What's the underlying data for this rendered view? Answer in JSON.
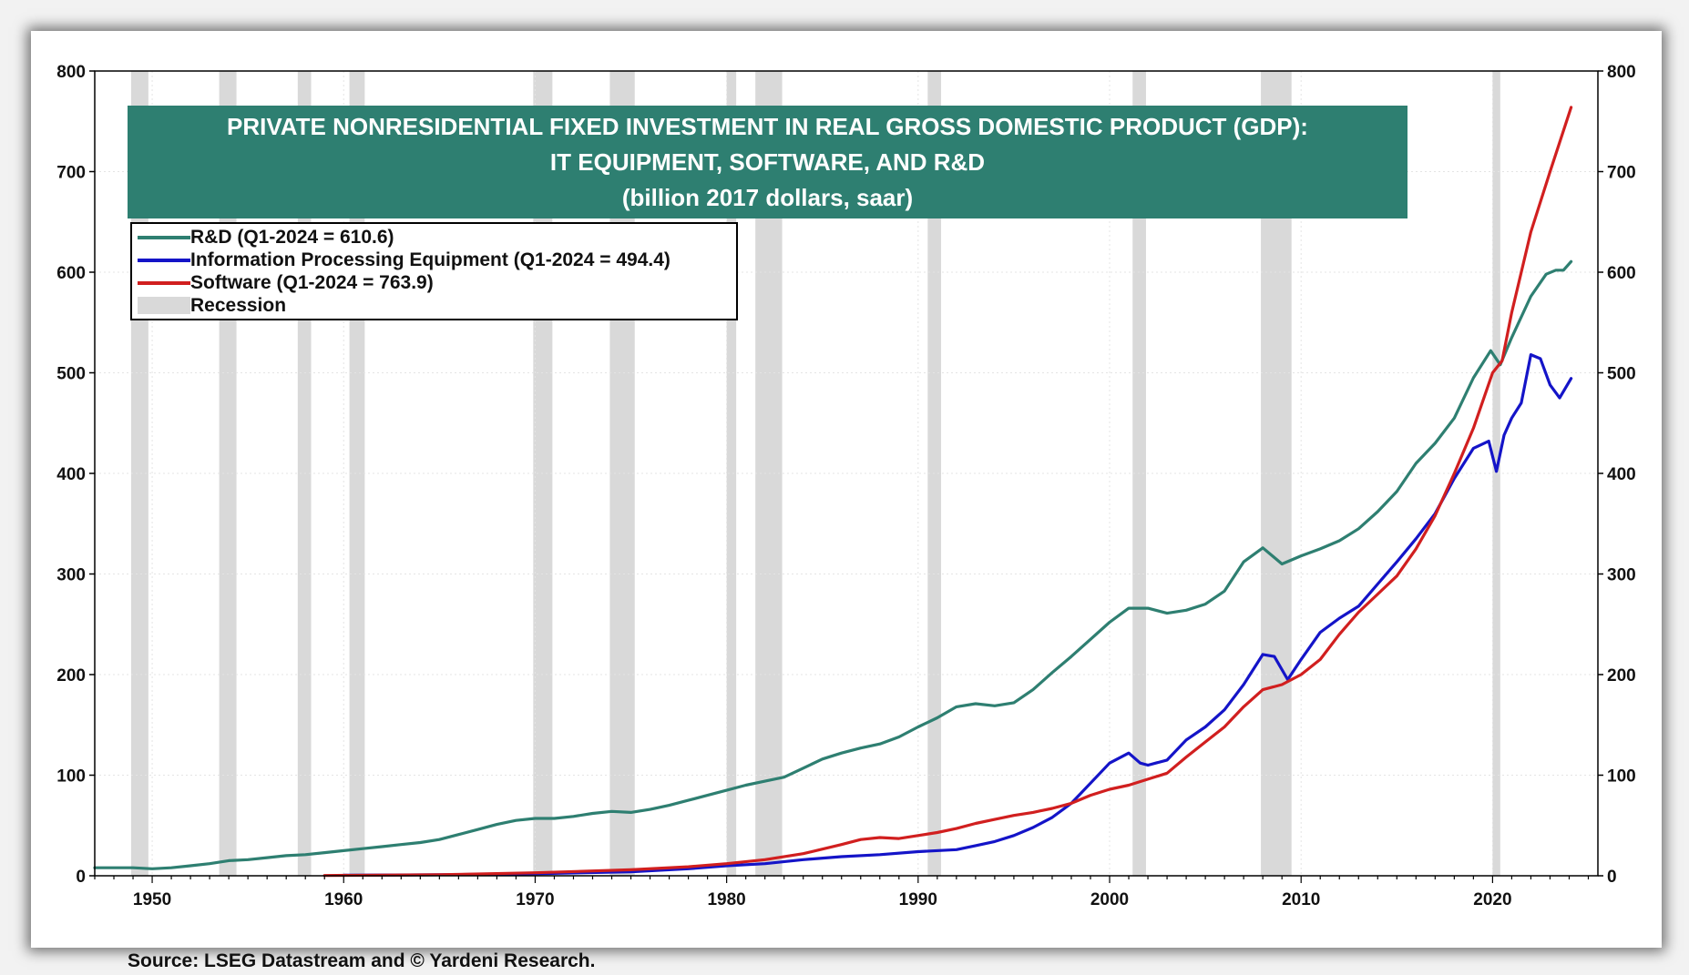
{
  "chart_data": {
    "type": "line",
    "title": "PRIVATE NONRESIDENTIAL FIXED INVESTMENT IN REAL GROSS DOMESTIC PRODUCT (GDP):",
    "subtitle": "IT EQUIPMENT, SOFTWARE, AND R&D",
    "units_note": "(billion 2017 dollars, saar)",
    "source": "Source: LSEG Datastream and © Yardeni Research.",
    "xlim": [
      1947,
      2025.5
    ],
    "ylim": [
      0,
      800
    ],
    "x_ticks": [
      1950,
      1960,
      1970,
      1980,
      1990,
      2000,
      2010,
      2020
    ],
    "y_ticks": [
      0,
      100,
      200,
      300,
      400,
      500,
      600,
      700,
      800
    ],
    "grid": true,
    "legend_position": "top-left",
    "recessions": [
      [
        1948.9,
        1949.8
      ],
      [
        1953.5,
        1954.4
      ],
      [
        1957.6,
        1958.3
      ],
      [
        1960.3,
        1961.1
      ],
      [
        1969.9,
        1970.9
      ],
      [
        1973.9,
        1975.2
      ],
      [
        1980.0,
        1980.5
      ],
      [
        1981.5,
        1982.9
      ],
      [
        1990.5,
        1991.2
      ],
      [
        2001.2,
        2001.9
      ],
      [
        2007.9,
        2009.5
      ],
      [
        2020.0,
        2020.4
      ]
    ],
    "series": [
      {
        "name": "R&D",
        "legend_label": "R&D  (Q1-2024 = 610.6)",
        "color": "#2e7f71",
        "points": [
          [
            1947,
            8
          ],
          [
            1948,
            8
          ],
          [
            1949,
            8
          ],
          [
            1950,
            7
          ],
          [
            1951,
            8
          ],
          [
            1952,
            10
          ],
          [
            1953,
            12
          ],
          [
            1954,
            15
          ],
          [
            1955,
            16
          ],
          [
            1956,
            18
          ],
          [
            1957,
            20
          ],
          [
            1958,
            21
          ],
          [
            1959,
            23
          ],
          [
            1960,
            25
          ],
          [
            1961,
            27
          ],
          [
            1962,
            29
          ],
          [
            1963,
            31
          ],
          [
            1964,
            33
          ],
          [
            1965,
            36
          ],
          [
            1966,
            41
          ],
          [
            1967,
            46
          ],
          [
            1968,
            51
          ],
          [
            1969,
            55
          ],
          [
            1970,
            57
          ],
          [
            1971,
            57
          ],
          [
            1972,
            59
          ],
          [
            1973,
            62
          ],
          [
            1974,
            64
          ],
          [
            1975,
            63
          ],
          [
            1976,
            66
          ],
          [
            1977,
            70
          ],
          [
            1978,
            75
          ],
          [
            1979,
            80
          ],
          [
            1980,
            85
          ],
          [
            1981,
            90
          ],
          [
            1982,
            94
          ],
          [
            1983,
            98
          ],
          [
            1984,
            107
          ],
          [
            1985,
            116
          ],
          [
            1986,
            122
          ],
          [
            1987,
            127
          ],
          [
            1988,
            131
          ],
          [
            1989,
            138
          ],
          [
            1990,
            148
          ],
          [
            1991,
            157
          ],
          [
            1992,
            168
          ],
          [
            1993,
            171
          ],
          [
            1994,
            169
          ],
          [
            1995,
            172
          ],
          [
            1996,
            185
          ],
          [
            1997,
            202
          ],
          [
            1998,
            218
          ],
          [
            1999,
            235
          ],
          [
            2000,
            252
          ],
          [
            2001,
            266
          ],
          [
            2002,
            266
          ],
          [
            2003,
            261
          ],
          [
            2004,
            264
          ],
          [
            2005,
            270
          ],
          [
            2006,
            283
          ],
          [
            2007,
            312
          ],
          [
            2008,
            326
          ],
          [
            2009,
            310
          ],
          [
            2010,
            318
          ],
          [
            2011,
            325
          ],
          [
            2012,
            333
          ],
          [
            2013,
            345
          ],
          [
            2014,
            362
          ],
          [
            2015,
            382
          ],
          [
            2016,
            410
          ],
          [
            2017,
            430
          ],
          [
            2018,
            455
          ],
          [
            2019,
            495
          ],
          [
            2019.9,
            522
          ],
          [
            2020.4,
            508
          ],
          [
            2021,
            535
          ],
          [
            2022,
            576
          ],
          [
            2022.8,
            598
          ],
          [
            2023.3,
            602
          ],
          [
            2023.7,
            602
          ],
          [
            2024.1,
            610.6
          ]
        ]
      },
      {
        "name": "Information Processing Equipment",
        "legend_label": "Information Processing Equipment (Q1-2024 = 494.4)",
        "color": "#1414c8",
        "points": [
          [
            1960,
            0.5
          ],
          [
            1965,
            1
          ],
          [
            1970,
            2
          ],
          [
            1975,
            4
          ],
          [
            1978,
            7
          ],
          [
            1980,
            10
          ],
          [
            1982,
            12
          ],
          [
            1984,
            16
          ],
          [
            1986,
            19
          ],
          [
            1988,
            21
          ],
          [
            1990,
            24
          ],
          [
            1992,
            26
          ],
          [
            1993,
            30
          ],
          [
            1994,
            34
          ],
          [
            1995,
            40
          ],
          [
            1996,
            48
          ],
          [
            1997,
            58
          ],
          [
            1998,
            72
          ],
          [
            1999,
            92
          ],
          [
            2000,
            112
          ],
          [
            2001,
            122
          ],
          [
            2001.6,
            112
          ],
          [
            2002,
            110
          ],
          [
            2003,
            115
          ],
          [
            2004,
            135
          ],
          [
            2005,
            148
          ],
          [
            2006,
            165
          ],
          [
            2007,
            190
          ],
          [
            2008,
            220
          ],
          [
            2008.6,
            218
          ],
          [
            2009.3,
            195
          ],
          [
            2010,
            215
          ],
          [
            2011,
            242
          ],
          [
            2012,
            256
          ],
          [
            2013,
            268
          ],
          [
            2014,
            290
          ],
          [
            2015,
            312
          ],
          [
            2016,
            335
          ],
          [
            2017,
            360
          ],
          [
            2018,
            395
          ],
          [
            2019,
            425
          ],
          [
            2019.8,
            432
          ],
          [
            2020.2,
            402
          ],
          [
            2020.6,
            438
          ],
          [
            2021,
            455
          ],
          [
            2021.5,
            470
          ],
          [
            2022,
            518
          ],
          [
            2022.5,
            514
          ],
          [
            2023,
            488
          ],
          [
            2023.5,
            475
          ],
          [
            2024.1,
            494.4
          ]
        ]
      },
      {
        "name": "Software",
        "legend_label": "Software (Q1-2024 = 763.9)",
        "color": "#d11f1f",
        "points": [
          [
            1959,
            0.3
          ],
          [
            1965,
            1
          ],
          [
            1970,
            3
          ],
          [
            1975,
            6
          ],
          [
            1978,
            9
          ],
          [
            1980,
            12
          ],
          [
            1982,
            16
          ],
          [
            1984,
            22
          ],
          [
            1986,
            31
          ],
          [
            1987,
            36
          ],
          [
            1988,
            38
          ],
          [
            1989,
            37
          ],
          [
            1990,
            40
          ],
          [
            1991,
            43
          ],
          [
            1992,
            47
          ],
          [
            1993,
            52
          ],
          [
            1994,
            56
          ],
          [
            1995,
            60
          ],
          [
            1996,
            63
          ],
          [
            1997,
            67
          ],
          [
            1998,
            72
          ],
          [
            1999,
            80
          ],
          [
            2000,
            86
          ],
          [
            2001,
            90
          ],
          [
            2002,
            96
          ],
          [
            2003,
            102
          ],
          [
            2004,
            118
          ],
          [
            2005,
            133
          ],
          [
            2006,
            148
          ],
          [
            2007,
            168
          ],
          [
            2008,
            185
          ],
          [
            2009,
            190
          ],
          [
            2010,
            200
          ],
          [
            2011,
            215
          ],
          [
            2012,
            240
          ],
          [
            2013,
            262
          ],
          [
            2014,
            280
          ],
          [
            2015,
            298
          ],
          [
            2016,
            325
          ],
          [
            2017,
            358
          ],
          [
            2018,
            400
          ],
          [
            2019,
            445
          ],
          [
            2020,
            500
          ],
          [
            2020.5,
            512
          ],
          [
            2021,
            560
          ],
          [
            2022,
            640
          ],
          [
            2023,
            700
          ],
          [
            2024.1,
            763.9
          ]
        ]
      }
    ],
    "recession_legend": {
      "label": "Recession",
      "color": "#d9d9d9"
    }
  }
}
